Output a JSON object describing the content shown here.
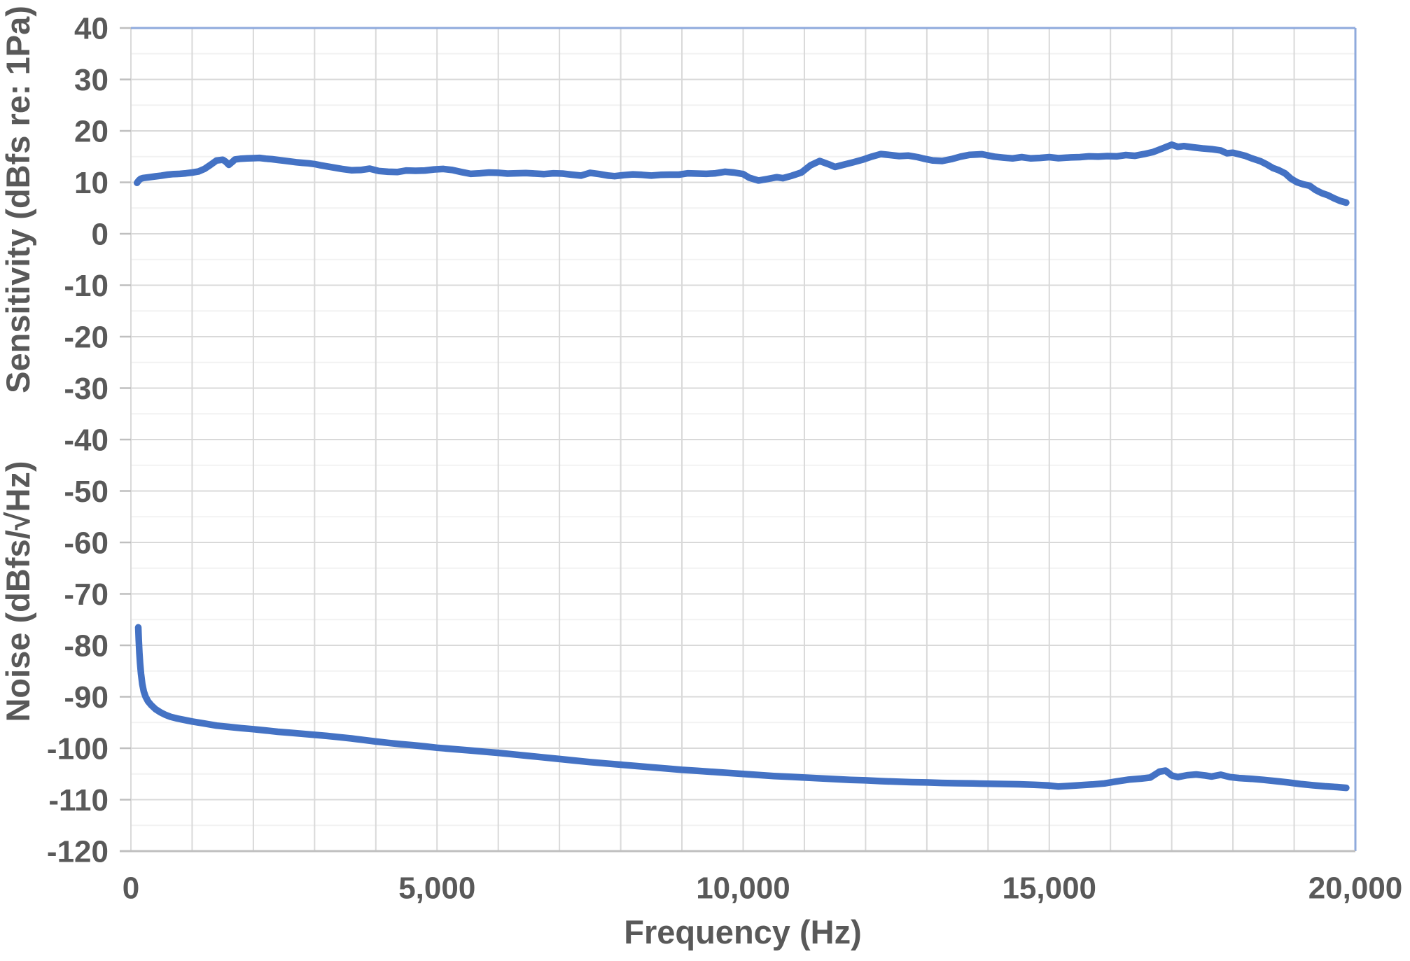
{
  "chart_data": {
    "type": "line",
    "title": "",
    "xlabel": "Frequency (Hz)",
    "ylabel_top": "Sensitivity (dBfs re: 1Pa)",
    "ylabel_bottom": "Noise (dBfs/√Hz)",
    "xlim": [
      0,
      20000
    ],
    "ylim": [
      -120,
      40
    ],
    "grid": {
      "x_step": 1000,
      "y_major_step": 10,
      "y_minor_step": 5,
      "legend": "none"
    },
    "x_ticks": [
      {
        "v": 0,
        "label": "0"
      },
      {
        "v": 5000,
        "label": "5,000"
      },
      {
        "v": 10000,
        "label": "10,000"
      },
      {
        "v": 15000,
        "label": "15,000"
      },
      {
        "v": 20000,
        "label": "20,000"
      }
    ],
    "y_ticks": [
      {
        "v": 40,
        "label": "40"
      },
      {
        "v": 30,
        "label": "30"
      },
      {
        "v": 20,
        "label": "20"
      },
      {
        "v": 10,
        "label": "10"
      },
      {
        "v": 0,
        "label": "0"
      },
      {
        "v": -10,
        "label": "-10"
      },
      {
        "v": -20,
        "label": "-20"
      },
      {
        "v": -30,
        "label": "-30"
      },
      {
        "v": -40,
        "label": "-40"
      },
      {
        "v": -50,
        "label": "-50"
      },
      {
        "v": -60,
        "label": "-60"
      },
      {
        "v": -70,
        "label": "-70"
      },
      {
        "v": -80,
        "label": "-80"
      },
      {
        "v": -90,
        "label": "-90"
      },
      {
        "v": -100,
        "label": "-100"
      },
      {
        "v": -110,
        "label": "-110"
      },
      {
        "v": -120,
        "label": "-120"
      }
    ],
    "series": [
      {
        "name": "Sensitivity (dBfs re: 1Pa)",
        "color": "#4472C4",
        "points": [
          [
            100,
            9.9
          ],
          [
            130,
            10.4
          ],
          [
            160,
            10.7
          ],
          [
            200,
            10.85
          ],
          [
            300,
            11.0
          ],
          [
            400,
            11.15
          ],
          [
            500,
            11.3
          ],
          [
            600,
            11.5
          ],
          [
            700,
            11.6
          ],
          [
            800,
            11.65
          ],
          [
            900,
            11.75
          ],
          [
            1000,
            11.9
          ],
          [
            1100,
            12.1
          ],
          [
            1200,
            12.6
          ],
          [
            1300,
            13.4
          ],
          [
            1400,
            14.25
          ],
          [
            1500,
            14.4
          ],
          [
            1550,
            14.0
          ],
          [
            1600,
            13.4
          ],
          [
            1650,
            13.9
          ],
          [
            1700,
            14.45
          ],
          [
            1800,
            14.6
          ],
          [
            1900,
            14.65
          ],
          [
            2000,
            14.7
          ],
          [
            2100,
            14.75
          ],
          [
            2200,
            14.6
          ],
          [
            2300,
            14.5
          ],
          [
            2400,
            14.35
          ],
          [
            2500,
            14.2
          ],
          [
            2600,
            14.05
          ],
          [
            2700,
            13.9
          ],
          [
            2800,
            13.8
          ],
          [
            2900,
            13.7
          ],
          [
            3000,
            13.55
          ],
          [
            3100,
            13.3
          ],
          [
            3200,
            13.1
          ],
          [
            3300,
            12.9
          ],
          [
            3450,
            12.6
          ],
          [
            3600,
            12.35
          ],
          [
            3750,
            12.4
          ],
          [
            3900,
            12.65
          ],
          [
            4050,
            12.2
          ],
          [
            4200,
            12.05
          ],
          [
            4350,
            12.0
          ],
          [
            4500,
            12.3
          ],
          [
            4650,
            12.25
          ],
          [
            4800,
            12.3
          ],
          [
            4950,
            12.5
          ],
          [
            5100,
            12.6
          ],
          [
            5250,
            12.4
          ],
          [
            5400,
            12.0
          ],
          [
            5550,
            11.65
          ],
          [
            5700,
            11.75
          ],
          [
            5850,
            11.9
          ],
          [
            6000,
            11.85
          ],
          [
            6150,
            11.7
          ],
          [
            6300,
            11.75
          ],
          [
            6450,
            11.8
          ],
          [
            6600,
            11.7
          ],
          [
            6750,
            11.6
          ],
          [
            6900,
            11.75
          ],
          [
            7050,
            11.7
          ],
          [
            7200,
            11.5
          ],
          [
            7350,
            11.3
          ],
          [
            7500,
            11.85
          ],
          [
            7650,
            11.6
          ],
          [
            7800,
            11.3
          ],
          [
            7900,
            11.2
          ],
          [
            8050,
            11.4
          ],
          [
            8200,
            11.55
          ],
          [
            8350,
            11.45
          ],
          [
            8500,
            11.3
          ],
          [
            8650,
            11.45
          ],
          [
            8800,
            11.5
          ],
          [
            8950,
            11.5
          ],
          [
            9100,
            11.75
          ],
          [
            9250,
            11.7
          ],
          [
            9400,
            11.65
          ],
          [
            9550,
            11.75
          ],
          [
            9700,
            12.05
          ],
          [
            9850,
            11.9
          ],
          [
            10000,
            11.6
          ],
          [
            10100,
            10.9
          ],
          [
            10250,
            10.35
          ],
          [
            10400,
            10.65
          ],
          [
            10550,
            11.0
          ],
          [
            10650,
            10.8
          ],
          [
            10800,
            11.3
          ],
          [
            10950,
            11.9
          ],
          [
            11100,
            13.3
          ],
          [
            11250,
            14.15
          ],
          [
            11400,
            13.5
          ],
          [
            11500,
            13.0
          ],
          [
            11650,
            13.45
          ],
          [
            11800,
            13.9
          ],
          [
            11950,
            14.4
          ],
          [
            12100,
            15.0
          ],
          [
            12250,
            15.5
          ],
          [
            12400,
            15.3
          ],
          [
            12550,
            15.1
          ],
          [
            12700,
            15.2
          ],
          [
            12850,
            14.9
          ],
          [
            12950,
            14.6
          ],
          [
            13100,
            14.25
          ],
          [
            13250,
            14.15
          ],
          [
            13400,
            14.5
          ],
          [
            13550,
            15.0
          ],
          [
            13700,
            15.35
          ],
          [
            13900,
            15.45
          ],
          [
            14100,
            15.0
          ],
          [
            14250,
            14.8
          ],
          [
            14400,
            14.65
          ],
          [
            14550,
            14.9
          ],
          [
            14700,
            14.65
          ],
          [
            14850,
            14.75
          ],
          [
            15000,
            14.9
          ],
          [
            15150,
            14.7
          ],
          [
            15350,
            14.85
          ],
          [
            15500,
            14.9
          ],
          [
            15650,
            15.05
          ],
          [
            15800,
            15.0
          ],
          [
            15950,
            15.1
          ],
          [
            16100,
            15.05
          ],
          [
            16250,
            15.3
          ],
          [
            16400,
            15.15
          ],
          [
            16550,
            15.5
          ],
          [
            16700,
            15.9
          ],
          [
            16850,
            16.6
          ],
          [
            17000,
            17.3
          ],
          [
            17100,
            16.9
          ],
          [
            17200,
            17.05
          ],
          [
            17350,
            16.8
          ],
          [
            17500,
            16.6
          ],
          [
            17650,
            16.45
          ],
          [
            17800,
            16.2
          ],
          [
            17900,
            15.65
          ],
          [
            18000,
            15.75
          ],
          [
            18100,
            15.45
          ],
          [
            18200,
            15.15
          ],
          [
            18300,
            14.7
          ],
          [
            18450,
            14.1
          ],
          [
            18550,
            13.5
          ],
          [
            18650,
            12.8
          ],
          [
            18750,
            12.35
          ],
          [
            18850,
            11.75
          ],
          [
            18950,
            10.7
          ],
          [
            19050,
            10.0
          ],
          [
            19150,
            9.6
          ],
          [
            19250,
            9.35
          ],
          [
            19350,
            8.5
          ],
          [
            19450,
            7.9
          ],
          [
            19550,
            7.5
          ],
          [
            19650,
            6.9
          ],
          [
            19750,
            6.4
          ],
          [
            19850,
            6.05
          ]
        ]
      },
      {
        "name": "Noise (dBfs/√Hz)",
        "color": "#4472C4",
        "points": [
          [
            120,
            -76.5
          ],
          [
            128,
            -79.0
          ],
          [
            138,
            -81.5
          ],
          [
            150,
            -83.5
          ],
          [
            165,
            -85.5
          ],
          [
            185,
            -87.5
          ],
          [
            210,
            -89.0
          ],
          [
            240,
            -90.0
          ],
          [
            280,
            -90.9
          ],
          [
            330,
            -91.6
          ],
          [
            400,
            -92.4
          ],
          [
            480,
            -93.0
          ],
          [
            560,
            -93.5
          ],
          [
            650,
            -93.9
          ],
          [
            750,
            -94.2
          ],
          [
            850,
            -94.45
          ],
          [
            1000,
            -94.8
          ],
          [
            1200,
            -95.2
          ],
          [
            1400,
            -95.6
          ],
          [
            1600,
            -95.85
          ],
          [
            1800,
            -96.1
          ],
          [
            2000,
            -96.3
          ],
          [
            2200,
            -96.55
          ],
          [
            2400,
            -96.8
          ],
          [
            2600,
            -97.0
          ],
          [
            2800,
            -97.2
          ],
          [
            3000,
            -97.4
          ],
          [
            3200,
            -97.6
          ],
          [
            3400,
            -97.85
          ],
          [
            3600,
            -98.1
          ],
          [
            3800,
            -98.4
          ],
          [
            4000,
            -98.7
          ],
          [
            4200,
            -98.95
          ],
          [
            4400,
            -99.2
          ],
          [
            4600,
            -99.4
          ],
          [
            4800,
            -99.65
          ],
          [
            5000,
            -99.9
          ],
          [
            5250,
            -100.15
          ],
          [
            5500,
            -100.4
          ],
          [
            5750,
            -100.65
          ],
          [
            6000,
            -100.9
          ],
          [
            6250,
            -101.2
          ],
          [
            6500,
            -101.5
          ],
          [
            6750,
            -101.8
          ],
          [
            7000,
            -102.1
          ],
          [
            7250,
            -102.4
          ],
          [
            7500,
            -102.7
          ],
          [
            7750,
            -102.95
          ],
          [
            8000,
            -103.2
          ],
          [
            8250,
            -103.45
          ],
          [
            8500,
            -103.7
          ],
          [
            8750,
            -103.95
          ],
          [
            9000,
            -104.2
          ],
          [
            9250,
            -104.4
          ],
          [
            9500,
            -104.6
          ],
          [
            9750,
            -104.8
          ],
          [
            10000,
            -105.0
          ],
          [
            10250,
            -105.2
          ],
          [
            10500,
            -105.4
          ],
          [
            10750,
            -105.55
          ],
          [
            11000,
            -105.7
          ],
          [
            11250,
            -105.85
          ],
          [
            11500,
            -106.0
          ],
          [
            11750,
            -106.15
          ],
          [
            12000,
            -106.25
          ],
          [
            12250,
            -106.4
          ],
          [
            12500,
            -106.5
          ],
          [
            12750,
            -106.6
          ],
          [
            13000,
            -106.65
          ],
          [
            13250,
            -106.75
          ],
          [
            13500,
            -106.8
          ],
          [
            13750,
            -106.85
          ],
          [
            14000,
            -106.9
          ],
          [
            14250,
            -106.95
          ],
          [
            14500,
            -107.0
          ],
          [
            14750,
            -107.1
          ],
          [
            15000,
            -107.25
          ],
          [
            15150,
            -107.45
          ],
          [
            15300,
            -107.35
          ],
          [
            15500,
            -107.2
          ],
          [
            15700,
            -107.05
          ],
          [
            15900,
            -106.85
          ],
          [
            16100,
            -106.45
          ],
          [
            16300,
            -106.1
          ],
          [
            16500,
            -105.9
          ],
          [
            16650,
            -105.7
          ],
          [
            16800,
            -104.55
          ],
          [
            16900,
            -104.35
          ],
          [
            17000,
            -105.3
          ],
          [
            17100,
            -105.6
          ],
          [
            17250,
            -105.25
          ],
          [
            17400,
            -105.1
          ],
          [
            17550,
            -105.3
          ],
          [
            17650,
            -105.5
          ],
          [
            17800,
            -105.15
          ],
          [
            17950,
            -105.6
          ],
          [
            18100,
            -105.8
          ],
          [
            18300,
            -105.95
          ],
          [
            18500,
            -106.15
          ],
          [
            18700,
            -106.4
          ],
          [
            18900,
            -106.65
          ],
          [
            19100,
            -106.95
          ],
          [
            19300,
            -107.2
          ],
          [
            19500,
            -107.4
          ],
          [
            19700,
            -107.55
          ],
          [
            19850,
            -107.7
          ]
        ]
      }
    ]
  },
  "colors": {
    "series": "#4472C4",
    "grid_major": "#D9D9D9",
    "grid_minor": "#F2F2F2",
    "plot_border": "#8FAADC",
    "axis_line": "#BFBFBF",
    "tick_mark": "#BFBFBF",
    "text": "#595959",
    "background": "#FFFFFF"
  }
}
